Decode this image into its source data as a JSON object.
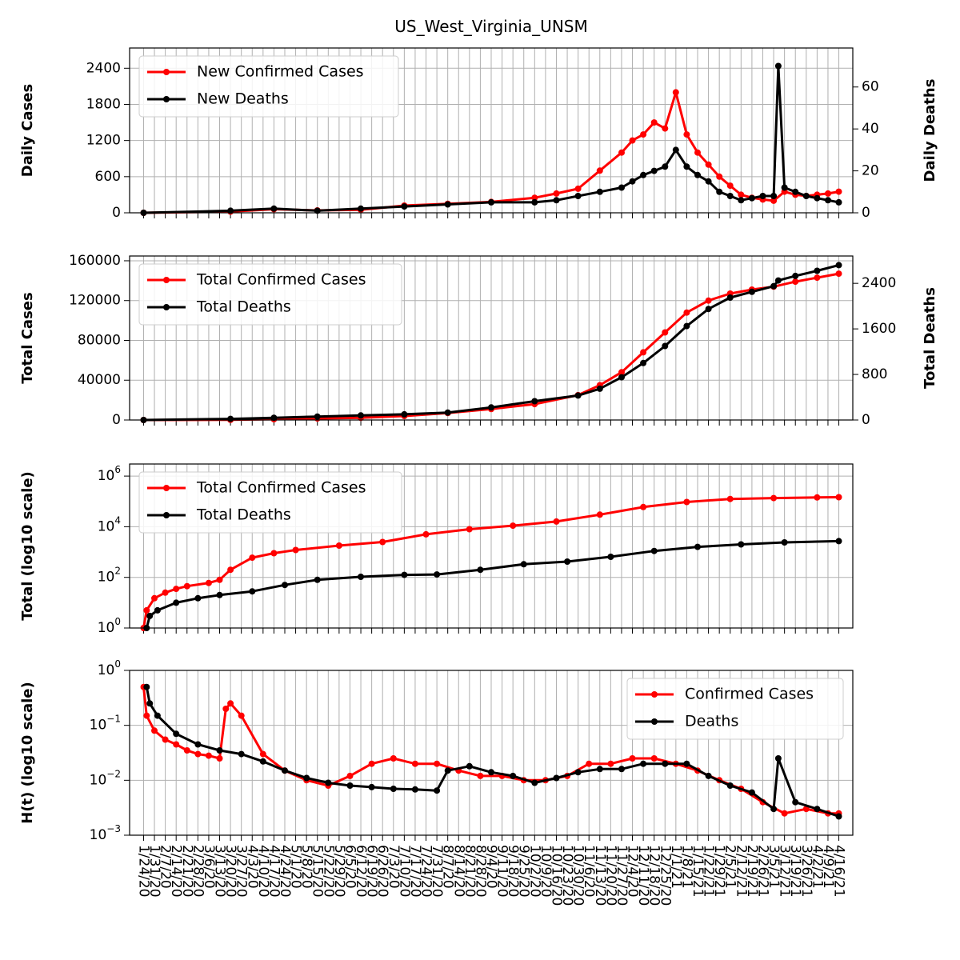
{
  "figure": {
    "title": "US_West_Virginia_UNSM"
  },
  "x_dates": [
    "1/24/20",
    "1/31/20",
    "2/7/20",
    "2/14/20",
    "2/21/20",
    "2/28/20",
    "3/6/20",
    "3/13/20",
    "3/20/20",
    "3/27/20",
    "4/3/20",
    "4/10/20",
    "4/17/20",
    "4/24/20",
    "5/1/20",
    "5/8/20",
    "5/15/20",
    "5/22/20",
    "5/29/20",
    "6/5/20",
    "6/12/20",
    "6/19/20",
    "6/26/20",
    "7/3/20",
    "7/10/20",
    "7/17/20",
    "7/24/20",
    "7/31/20",
    "8/7/20",
    "8/14/20",
    "8/21/20",
    "8/28/20",
    "9/4/20",
    "9/11/20",
    "9/18/20",
    "9/25/20",
    "10/2/20",
    "10/9/20",
    "10/16/20",
    "10/23/20",
    "10/30/20",
    "11/6/20",
    "11/13/20",
    "11/20/20",
    "11/27/20",
    "12/4/20",
    "12/11/20",
    "12/18/20",
    "12/25/20",
    "1/1/21",
    "1/8/21",
    "1/15/21",
    "1/22/21",
    "1/29/21",
    "2/5/21",
    "2/12/21",
    "2/19/21",
    "2/26/21",
    "3/5/21",
    "3/12/21",
    "3/19/21",
    "3/26/21",
    "4/2/21",
    "4/9/21",
    "4/16/21"
  ],
  "colors": {
    "cases": "#ff0000",
    "deaths": "#000000",
    "grid": "#b0b0b0"
  },
  "chart_data": [
    {
      "type": "line",
      "panel": "daily",
      "ylabel": "Daily Cases",
      "ylabel_right": "Daily Deaths",
      "yticks": [
        "0",
        "600",
        "1200",
        "1800",
        "2400"
      ],
      "yticks_right": [
        "0",
        "20",
        "40",
        "60"
      ],
      "ylim": [
        0,
        2400
      ],
      "ylim_right": [
        0,
        60
      ],
      "legend": [
        "New Confirmed Cases",
        "New Deaths"
      ],
      "legend_position": "upper-left",
      "series": [
        {
          "name": "New Confirmed Cases",
          "axis": "left",
          "x": [
            "1/24/20",
            "3/20/20",
            "4/17/20",
            "5/15/20",
            "6/12/20",
            "7/10/20",
            "8/7/20",
            "9/4/20",
            "10/2/20",
            "10/16/20",
            "10/30/20",
            "11/13/20",
            "11/27/20",
            "12/4/20",
            "12/11/20",
            "12/18/20",
            "12/25/20",
            "1/1/21",
            "1/8/21",
            "1/15/21",
            "1/22/21",
            "1/29/21",
            "2/5/21",
            "2/12/21",
            "2/19/21",
            "2/26/21",
            "3/5/21",
            "3/12/21",
            "3/19/21",
            "3/26/21",
            "4/2/21",
            "4/9/21",
            "4/16/21"
          ],
          "values": [
            0,
            20,
            60,
            40,
            50,
            120,
            150,
            180,
            250,
            320,
            400,
            700,
            1000,
            1200,
            1300,
            1500,
            1400,
            2000,
            1300,
            1000,
            800,
            600,
            450,
            300,
            250,
            220,
            200,
            350,
            300,
            280,
            300,
            320,
            350
          ]
        },
        {
          "name": "New Deaths",
          "axis": "right",
          "x": [
            "1/24/20",
            "3/20/20",
            "4/17/20",
            "5/15/20",
            "6/12/20",
            "7/10/20",
            "8/7/20",
            "9/4/20",
            "10/2/20",
            "10/16/20",
            "10/30/20",
            "11/13/20",
            "11/27/20",
            "12/4/20",
            "12/11/20",
            "12/18/20",
            "12/25/20",
            "1/1/21",
            "1/8/21",
            "1/15/21",
            "1/22/21",
            "1/29/21",
            "2/5/21",
            "2/12/21",
            "2/19/21",
            "2/26/21",
            "3/5/21",
            "3/8/21",
            "3/12/21",
            "3/19/21",
            "3/26/21",
            "4/2/21",
            "4/9/21",
            "4/16/21"
          ],
          "values": [
            0,
            1,
            2,
            1,
            2,
            3,
            4,
            5,
            5,
            6,
            8,
            10,
            12,
            15,
            18,
            20,
            22,
            30,
            22,
            18,
            15,
            10,
            8,
            6,
            7,
            8,
            8,
            70,
            12,
            10,
            8,
            7,
            6,
            5
          ]
        }
      ]
    },
    {
      "type": "line",
      "panel": "total",
      "ylabel": "Total Cases",
      "ylabel_right": "Total Deaths",
      "yticks": [
        "0",
        "40000",
        "80000",
        "120000",
        "160000"
      ],
      "yticks_right": [
        "0",
        "800",
        "1600",
        "2400"
      ],
      "ylim": [
        0,
        160000
      ],
      "ylim_right": [
        0,
        2400
      ],
      "legend": [
        "Total Confirmed Cases",
        "Total Deaths"
      ],
      "legend_position": "upper-left",
      "series": [
        {
          "name": "Total Confirmed Cases",
          "axis": "left",
          "x": [
            "1/24/20",
            "3/20/20",
            "4/17/20",
            "5/15/20",
            "6/12/20",
            "7/10/20",
            "8/7/20",
            "9/4/20",
            "10/2/20",
            "10/30/20",
            "11/13/20",
            "11/27/20",
            "12/11/20",
            "12/25/20",
            "1/8/21",
            "1/22/21",
            "2/5/21",
            "2/19/21",
            "3/5/21",
            "3/19/21",
            "4/2/21",
            "4/16/21"
          ],
          "values": [
            0,
            200,
            800,
            1500,
            2200,
            4000,
            7000,
            11000,
            16000,
            25000,
            35000,
            48000,
            68000,
            88000,
            108000,
            120000,
            127000,
            131000,
            134000,
            139000,
            143000,
            147000
          ]
        },
        {
          "name": "Total Deaths",
          "axis": "right",
          "x": [
            "1/24/20",
            "3/20/20",
            "4/17/20",
            "5/15/20",
            "6/12/20",
            "7/10/20",
            "8/7/20",
            "9/4/20",
            "10/2/20",
            "10/30/20",
            "11/13/20",
            "11/27/20",
            "12/11/20",
            "12/25/20",
            "1/8/21",
            "1/22/21",
            "2/5/21",
            "2/19/21",
            "3/5/21",
            "3/8/21",
            "3/19/21",
            "4/2/21",
            "4/16/21"
          ],
          "values": [
            0,
            20,
            40,
            60,
            80,
            100,
            130,
            220,
            330,
            430,
            550,
            750,
            1000,
            1300,
            1650,
            1950,
            2150,
            2250,
            2350,
            2450,
            2530,
            2620,
            2720
          ]
        }
      ]
    },
    {
      "type": "line",
      "panel": "log_total",
      "ylabel": "Total (log10 scale)",
      "yscale": "log",
      "yticks": [
        "10^0",
        "10^2",
        "10^4",
        "10^6"
      ],
      "ylim": [
        1,
        3000000
      ],
      "legend": [
        "Total Confirmed Cases",
        "Total Deaths"
      ],
      "legend_position": "upper-left",
      "series": [
        {
          "name": "Total Confirmed Cases",
          "x": [
            "1/24/20",
            "1/26/20",
            "1/31/20",
            "2/7/20",
            "2/14/20",
            "2/21/20",
            "3/6/20",
            "3/13/20",
            "3/20/20",
            "4/3/20",
            "4/17/20",
            "5/1/20",
            "5/29/20",
            "6/26/20",
            "7/24/20",
            "8/21/20",
            "9/18/20",
            "10/16/20",
            "11/13/20",
            "12/11/20",
            "1/8/21",
            "2/5/21",
            "3/5/21",
            "4/2/21",
            "4/16/21"
          ],
          "values": [
            1,
            5,
            15,
            25,
            35,
            45,
            60,
            80,
            200,
            600,
            900,
            1200,
            1800,
            2500,
            5000,
            8000,
            11000,
            16000,
            30000,
            60000,
            95000,
            125000,
            135000,
            143000,
            147000
          ]
        },
        {
          "name": "Total Deaths",
          "x": [
            "1/26/20",
            "1/28/20",
            "2/2/20",
            "2/14/20",
            "2/28/20",
            "3/13/20",
            "4/3/20",
            "4/24/20",
            "5/15/20",
            "6/12/20",
            "7/10/20",
            "7/31/20",
            "8/28/20",
            "9/25/20",
            "10/23/20",
            "11/20/20",
            "12/18/20",
            "1/15/21",
            "2/12/21",
            "3/12/21",
            "4/16/21"
          ],
          "values": [
            1,
            3,
            5,
            10,
            15,
            20,
            28,
            50,
            80,
            105,
            125,
            130,
            200,
            330,
            420,
            650,
            1100,
            1600,
            2000,
            2400,
            2700
          ]
        }
      ]
    },
    {
      "type": "line",
      "panel": "ht",
      "ylabel": "H(t) (log10 scale)",
      "yscale": "log",
      "yticks": [
        "10^-3",
        "10^-2",
        "10^-1",
        "10^0"
      ],
      "ylim": [
        0.001,
        1
      ],
      "legend": [
        "Confirmed Cases",
        "Deaths"
      ],
      "legend_position": "upper-right",
      "series": [
        {
          "name": "Confirmed Cases",
          "x": [
            "1/24/20",
            "1/26/20",
            "1/31/20",
            "2/7/20",
            "2/14/20",
            "2/21/20",
            "2/28/20",
            "3/6/20",
            "3/13/20",
            "3/17/20",
            "3/20/20",
            "3/27/20",
            "4/10/20",
            "4/24/20",
            "5/8/20",
            "5/22/20",
            "6/5/20",
            "6/19/20",
            "7/3/20",
            "7/17/20",
            "7/31/20",
            "8/14/20",
            "8/28/20",
            "9/11/20",
            "9/25/20",
            "10/9/20",
            "10/23/20",
            "11/6/20",
            "11/20/20",
            "12/4/20",
            "12/18/20",
            "1/1/21",
            "1/15/21",
            "1/29/21",
            "2/12/21",
            "2/26/21",
            "3/12/21",
            "3/26/21",
            "4/9/21",
            "4/16/21"
          ],
          "values": [
            0.5,
            0.15,
            0.08,
            0.055,
            0.045,
            0.035,
            0.03,
            0.028,
            0.025,
            0.2,
            0.25,
            0.15,
            0.03,
            0.015,
            0.01,
            0.008,
            0.012,
            0.02,
            0.025,
            0.02,
            0.02,
            0.015,
            0.012,
            0.012,
            0.01,
            0.01,
            0.012,
            0.02,
            0.02,
            0.025,
            0.025,
            0.02,
            0.015,
            0.01,
            0.007,
            0.004,
            0.0025,
            0.003,
            0.0025,
            0.0025
          ]
        },
        {
          "name": "Deaths",
          "x": [
            "1/26/20",
            "1/28/20",
            "2/2/20",
            "2/14/20",
            "2/28/20",
            "3/13/20",
            "3/27/20",
            "4/10/20",
            "4/24/20",
            "5/8/20",
            "5/22/20",
            "6/5/20",
            "6/19/20",
            "7/3/20",
            "7/17/20",
            "7/31/20",
            "8/7/20",
            "8/21/20",
            "9/4/20",
            "9/18/20",
            "10/2/20",
            "10/16/20",
            "10/30/20",
            "11/13/20",
            "11/27/20",
            "12/11/20",
            "12/25/20",
            "1/8/21",
            "1/22/21",
            "2/5/21",
            "2/19/21",
            "3/5/21",
            "3/8/21",
            "3/19/21",
            "4/2/21",
            "4/16/21"
          ],
          "values": [
            0.5,
            0.25,
            0.15,
            0.07,
            0.045,
            0.035,
            0.03,
            0.022,
            0.015,
            0.011,
            0.009,
            0.008,
            0.0075,
            0.007,
            0.0068,
            0.0065,
            0.015,
            0.018,
            0.014,
            0.012,
            0.009,
            0.011,
            0.014,
            0.016,
            0.016,
            0.02,
            0.02,
            0.02,
            0.012,
            0.008,
            0.006,
            0.003,
            0.025,
            0.004,
            0.003,
            0.0022
          ]
        }
      ]
    }
  ]
}
